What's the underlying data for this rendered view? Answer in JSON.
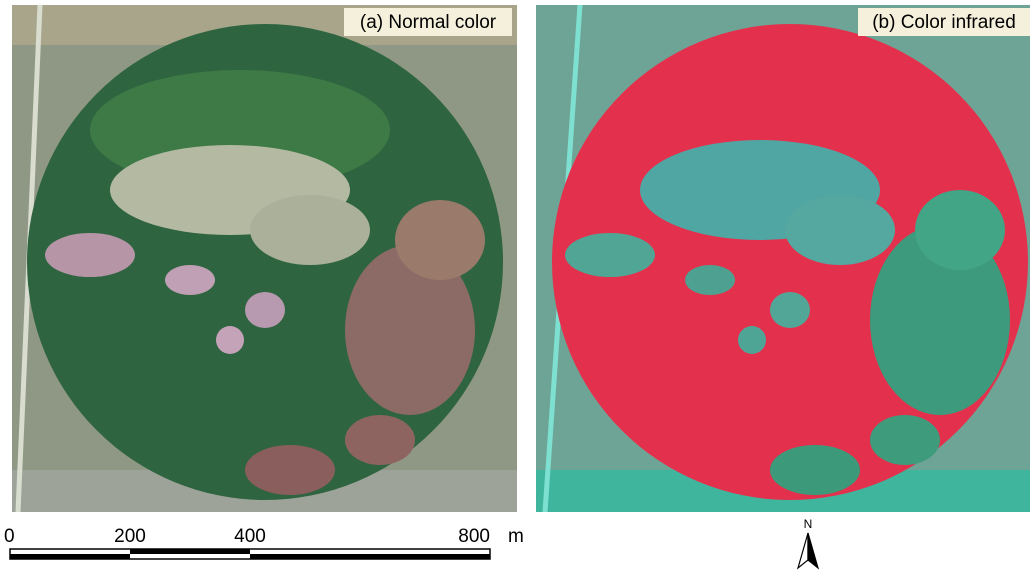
{
  "panels": [
    {
      "label": "(a) Normal color"
    },
    {
      "label": "(b) Color infrared"
    }
  ],
  "scale_bar": {
    "ticks": [
      0,
      200,
      400,
      800
    ],
    "unit": "m"
  },
  "north_arrow": {
    "label": "N"
  }
}
